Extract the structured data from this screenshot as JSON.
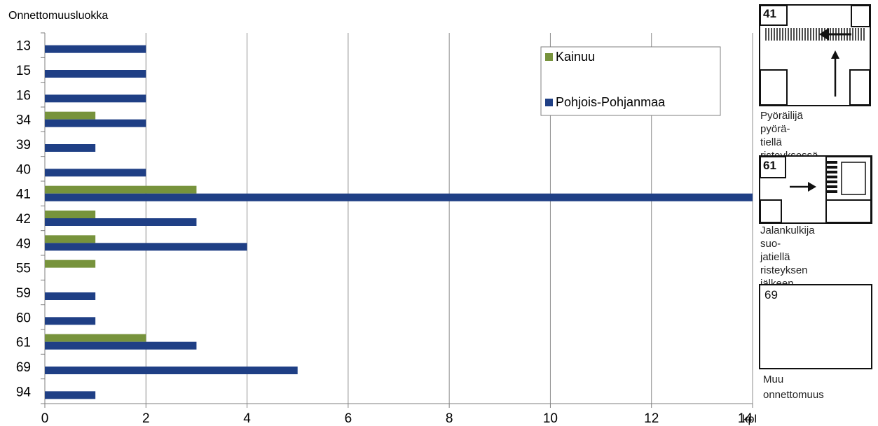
{
  "chart_data": {
    "type": "bar",
    "orientation": "horizontal",
    "yaxis_title": "Onnettomuusluokka",
    "x_unit": "kpl",
    "categories": [
      "13",
      "15",
      "16",
      "34",
      "39",
      "40",
      "41",
      "42",
      "49",
      "55",
      "59",
      "60",
      "61",
      "69",
      "94"
    ],
    "series": [
      {
        "name": "Kainuu",
        "color": "#77933c",
        "values": [
          0,
          0,
          0,
          1,
          0,
          0,
          3,
          1,
          1,
          1,
          0,
          0,
          2,
          0,
          0
        ]
      },
      {
        "name": "Pohjois-Pohjanmaa",
        "color": "#1f3f85",
        "values": [
          2,
          2,
          2,
          2,
          1,
          2,
          14,
          3,
          4,
          0,
          1,
          1,
          3,
          5,
          1
        ]
      }
    ],
    "xlim": [
      0,
      14
    ],
    "xticks": [
      0,
      2,
      4,
      6,
      8,
      10,
      12,
      14
    ],
    "grid": "vertical",
    "legend_position": "top-right"
  },
  "panels": [
    {
      "number": "41",
      "caption": "Pyöräilijä pyörä-\ntiellä risteyksessä",
      "icon": "cyclist-at-intersection-diagram"
    },
    {
      "number": "61",
      "caption": "Jalankulkija suo-\njatiellä risteyksen\njälkeen",
      "icon": "pedestrian-crossing-diagram"
    },
    {
      "number": "69",
      "caption": "Muu\nonnettomuus",
      "icon": "other-accident-diagram"
    }
  ]
}
